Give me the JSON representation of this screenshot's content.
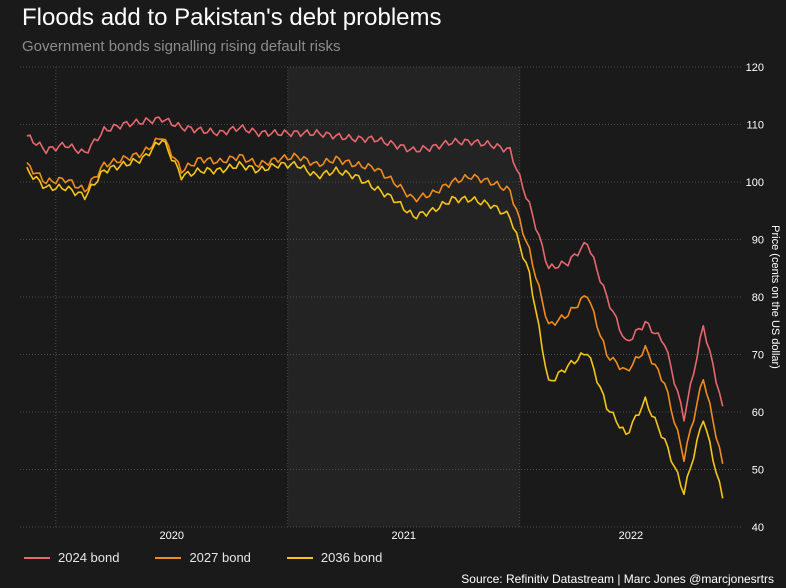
{
  "header": {
    "title": "Floods add to Pakistan's debt problems",
    "subtitle": "Government bonds signalling rising default risks"
  },
  "footer": {
    "source": "Source: Refinitiv Datastream | Marc Jones @marcjonesrtrs"
  },
  "colors": {
    "background": "#1a1a1a",
    "shaded_year": "#232323",
    "grid": "#4a4a4a",
    "bond_2024": "#e8676f",
    "bond_2027": "#f08c1e",
    "bond_2036": "#f5c518"
  },
  "chart_data": {
    "type": "line",
    "ylabel": "Price (cents on the US dollar)",
    "ylim": [
      40,
      120
    ],
    "yticks": [
      40,
      50,
      60,
      70,
      80,
      90,
      100,
      110,
      120
    ],
    "x_range": [
      "2019-11",
      "2022-12"
    ],
    "x_tick_labels": [
      "2020",
      "2021",
      "2022"
    ],
    "shaded_year": "2021",
    "grid": true,
    "legend_position": "bottom-left",
    "x": [
      "2019-11",
      "2019-12",
      "2020-01",
      "2020-02",
      "2020-03",
      "2020-04",
      "2020-05",
      "2020-06",
      "2020-07",
      "2020-08",
      "2020-09",
      "2020-10",
      "2020-11",
      "2020-12",
      "2021-01",
      "2021-02",
      "2021-03",
      "2021-04",
      "2021-05",
      "2021-06",
      "2021-07",
      "2021-08",
      "2021-09",
      "2021-10",
      "2021-11",
      "2021-12",
      "2022-01",
      "2022-02",
      "2022-03",
      "2022-04",
      "2022-05",
      "2022-06",
      "2022-07",
      "2022-08",
      "2022-09",
      "2022-10",
      "2022-11"
    ],
    "series": [
      {
        "name": "2024 bond",
        "color": "#e8676f",
        "values": [
          108,
          105.5,
          106.5,
          105,
          109,
          110,
          110.5,
          111,
          109.5,
          109,
          108.5,
          109.5,
          108.5,
          108.5,
          108.5,
          108.5,
          108,
          107.5,
          107.5,
          106.5,
          105.5,
          106,
          107,
          107,
          106.5,
          105.5,
          96,
          85,
          86,
          89.5,
          80,
          72,
          75.5,
          72,
          59,
          75,
          61
        ]
      },
      {
        "name": "2027 bond",
        "color": "#f08c1e",
        "values": [
          103,
          100,
          100.5,
          98.5,
          103,
          104,
          105,
          108,
          102,
          104,
          103.5,
          104.5,
          103,
          104,
          104.5,
          103,
          104,
          103,
          102.5,
          100,
          97,
          98,
          100,
          101,
          100,
          98.5,
          88,
          75,
          77,
          80.5,
          70,
          67,
          71,
          65,
          52,
          66,
          51
        ]
      },
      {
        "name": "2036 bond",
        "color": "#f5c518",
        "values": [
          102,
          99,
          99,
          97.5,
          102,
          103,
          104,
          107.5,
          101,
          102,
          102,
          103,
          102,
          103,
          103,
          101,
          102,
          101,
          99,
          97,
          94,
          95,
          97,
          97,
          96,
          94,
          84,
          65,
          68,
          70.5,
          61,
          56,
          62,
          55,
          46,
          59,
          45
        ]
      }
    ]
  }
}
